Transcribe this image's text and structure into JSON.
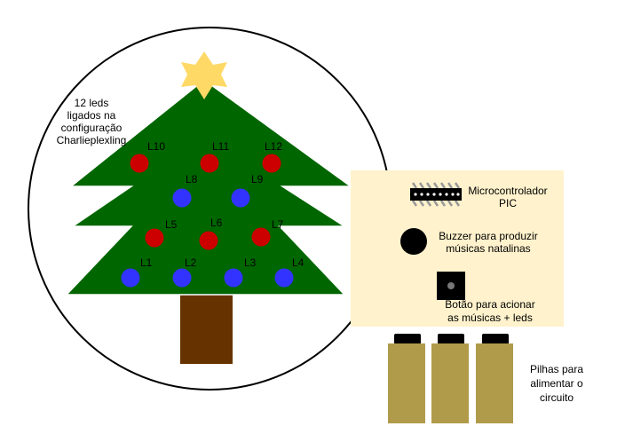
{
  "tree_note": [
    "12 leds",
    "ligados na",
    "configuração",
    "Charlieplexling"
  ],
  "leds": [
    {
      "label": "L1",
      "color": "#3333ff"
    },
    {
      "label": "L2",
      "color": "#3333ff"
    },
    {
      "label": "L3",
      "color": "#3333ff"
    },
    {
      "label": "L4",
      "color": "#3333ff"
    },
    {
      "label": "L5",
      "color": "#cc0000"
    },
    {
      "label": "L6",
      "color": "#cc0000"
    },
    {
      "label": "L7",
      "color": "#cc0000"
    },
    {
      "label": "L8",
      "color": "#3333ff"
    },
    {
      "label": "L9",
      "color": "#3333ff"
    },
    {
      "label": "L10",
      "color": "#cc0000"
    },
    {
      "label": "L11",
      "color": "#cc0000"
    },
    {
      "label": "L12",
      "color": "#cc0000"
    }
  ],
  "components": {
    "microcontroller": [
      "Microcontrolador",
      "PIC"
    ],
    "buzzer": [
      "Buzzer para produzir",
      "músicas natalinas"
    ],
    "button": [
      "Botão para acionar",
      "as músicas + leds"
    ],
    "batteries": [
      "Pilhas para",
      "alimentar o",
      "circuito"
    ]
  },
  "colors": {
    "tree": "#006600",
    "trunk": "#663300",
    "star": "#ffd966",
    "panel": "#fff2cc",
    "battery": "#b09b4a"
  }
}
